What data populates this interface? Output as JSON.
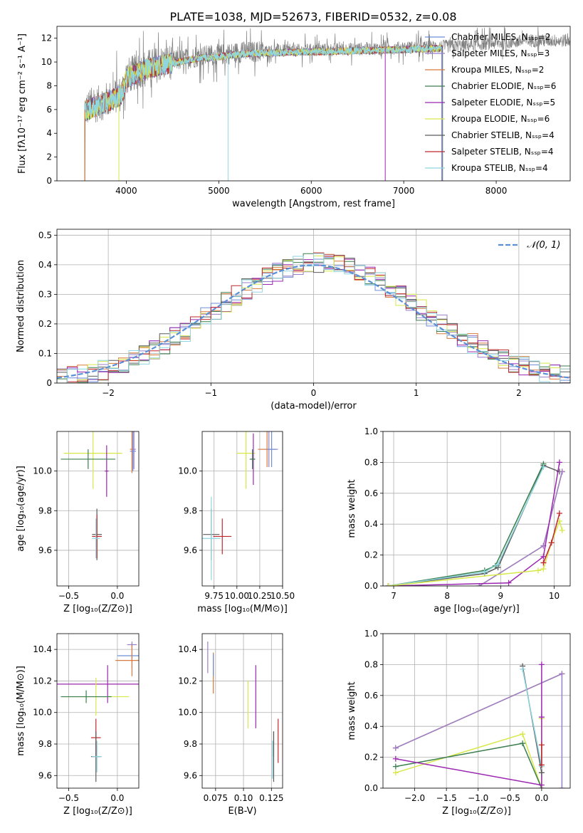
{
  "colors": [
    "#6f8fd8",
    "#9a7fc9",
    "#d97a3c",
    "#3c7f4e",
    "#9b27b0",
    "#d6e84a",
    "#5b5b5b",
    "#c0282d",
    "#8fd6e0"
  ],
  "chart_data": [
    {
      "id": "spectrum",
      "type": "line",
      "title": "PLATE=1038, MJD=52673, FIBERID=0532, z=0.08",
      "xlabel": "wavelength [Angstrom, rest frame]",
      "ylabel": "Flux [fλ10⁻¹⁷ erg cm⁻² s⁻¹ A⁻¹]",
      "xlim": [
        3250,
        8800
      ],
      "ylim": [
        0,
        13
      ],
      "xticks": [
        4000,
        5000,
        6000,
        7000,
        8000
      ],
      "yticks": [
        0,
        2,
        4,
        6,
        8,
        10,
        12
      ],
      "legend_placement": "right",
      "series": [
        {
          "name": "Chabrier MILES, Nₛₛₚ=2",
          "color": "#6f8fd8"
        },
        {
          "name": "Salpeter MILES, Nₛₛₚ=3",
          "color": "#9a7fc9"
        },
        {
          "name": "Kroupa MILES, Nₛₛₚ=2",
          "color": "#d97a3c"
        },
        {
          "name": "Chabrier ELODIE, Nₛₛₚ=6",
          "color": "#3c7f4e"
        },
        {
          "name": "Salpeter ELODIE, Nₛₛₚ=5",
          "color": "#9b27b0"
        },
        {
          "name": "Kroupa ELODIE, Nₛₛₚ=6",
          "color": "#d6e84a"
        },
        {
          "name": "Chabrier STELIB, Nₛₛₚ=4",
          "color": "#5b5b5b"
        },
        {
          "name": "Salpeter STELIB, Nₛₛₚ=4",
          "color": "#c0282d"
        },
        {
          "name": "Kroupa STELIB, Nₛₛₚ=4",
          "color": "#8fd6e0"
        }
      ],
      "data_trend": [
        [
          3550,
          6.0
        ],
        [
          3700,
          6.5
        ],
        [
          3850,
          7.0
        ],
        [
          3950,
          7.4
        ],
        [
          4000,
          8.8
        ],
        [
          4200,
          9.5
        ],
        [
          4400,
          9.9
        ],
        [
          4600,
          10.2
        ],
        [
          4800,
          10.5
        ],
        [
          5000,
          10.6
        ],
        [
          5200,
          10.8
        ],
        [
          5500,
          10.9
        ],
        [
          6000,
          11.0
        ],
        [
          6500,
          11.1
        ],
        [
          7000,
          11.2
        ],
        [
          7400,
          11.3
        ],
        [
          7700,
          11.4
        ],
        [
          8000,
          11.6
        ],
        [
          8400,
          11.8
        ],
        [
          8800,
          11.8
        ]
      ],
      "model_range": [
        3550,
        7420
      ]
    },
    {
      "id": "residuals",
      "type": "line",
      "xlabel": "(data-model)/error",
      "ylabel": "Normed distribution",
      "xlim": [
        -2.5,
        2.5
      ],
      "ylim": [
        0,
        0.52
      ],
      "xticks": [
        -2,
        -1,
        0,
        1,
        2
      ],
      "yticks": [
        0.0,
        0.1,
        0.2,
        0.3,
        0.4,
        0.5
      ],
      "legend": [
        {
          "name": "𝒩(0, 1)",
          "color": "#5b8fd6"
        }
      ],
      "gaussian": {
        "mean": 0,
        "sigma": 1
      },
      "hist_bins": [
        -2.5,
        2.5,
        50
      ]
    },
    {
      "id": "age-vs-Z",
      "type": "scatter",
      "xlabel": "Z [log₁₀(Z/Z⊙)]",
      "ylabel": "age  [log₁₀(age/yr)]",
      "xlim": [
        -0.62,
        0.22
      ],
      "ylim": [
        9.42,
        10.2
      ],
      "xticks": [
        -0.5,
        0.0
      ],
      "yticks": [
        9.6,
        9.8,
        10.0
      ],
      "points": [
        {
          "x": 0.15,
          "y": 10.11,
          "xerr": 0.02,
          "yerr": 0.12,
          "c": 2
        },
        {
          "x": 0.16,
          "y": 10.1,
          "xerr": 0.03,
          "yerr": 0.1,
          "c": 0
        },
        {
          "x": 0.17,
          "y": 10.11,
          "xerr": 0.02,
          "yerr": 0.1,
          "c": 1
        },
        {
          "x": -0.25,
          "y": 10.09,
          "xerr": 0.3,
          "yerr": 0.18,
          "c": 5
        },
        {
          "x": -0.11,
          "y": 10.0,
          "xerr": 0.02,
          "yerr": 0.13,
          "c": 4
        },
        {
          "x": -0.3,
          "y": 10.06,
          "xerr": 0.28,
          "yerr": 0.05,
          "c": 3
        },
        {
          "x": -0.21,
          "y": 9.68,
          "xerr": 0.05,
          "yerr": 0.13,
          "c": 6
        },
        {
          "x": -0.21,
          "y": 9.67,
          "xerr": 0.05,
          "yerr": 0.11,
          "c": 7
        },
        {
          "x": -0.22,
          "y": 9.66,
          "xerr": 0.04,
          "yerr": 0.1,
          "c": 8
        }
      ]
    },
    {
      "id": "age-vs-mass",
      "type": "scatter",
      "xlabel": "mass [log₁₀(M/M⊙)]",
      "ylabel": "",
      "xlim": [
        9.62,
        10.5
      ],
      "ylim": [
        9.42,
        10.2
      ],
      "xticks": [
        9.75,
        10.0,
        10.25,
        10.5
      ],
      "yticks": [
        9.6,
        9.8,
        10.0
      ],
      "points": [
        {
          "x": 10.35,
          "y": 10.11,
          "xerr": 0.1,
          "yerr": 0.09,
          "c": 1
        },
        {
          "x": 10.33,
          "y": 10.11,
          "xerr": 0.1,
          "yerr": 0.09,
          "c": 2
        },
        {
          "x": 10.38,
          "y": 10.11,
          "xerr": 0.05,
          "yerr": 0.09,
          "c": 0
        },
        {
          "x": 10.1,
          "y": 10.09,
          "xerr": 0.1,
          "yerr": 0.18,
          "c": 5
        },
        {
          "x": 10.18,
          "y": 10.06,
          "xerr": 0.02,
          "yerr": 0.13,
          "c": 4
        },
        {
          "x": 10.17,
          "y": 10.06,
          "xerr": 0.03,
          "yerr": 0.05,
          "c": 3
        },
        {
          "x": 9.72,
          "y": 9.68,
          "xerr": 0.09,
          "yerr": 0.13,
          "c": 6
        },
        {
          "x": 9.84,
          "y": 9.67,
          "xerr": 0.1,
          "yerr": 0.09,
          "c": 7
        },
        {
          "x": 9.72,
          "y": 9.66,
          "xerr": 0.1,
          "yerr": 0.21,
          "c": 8
        }
      ]
    },
    {
      "id": "weight-vs-age",
      "type": "line",
      "xlabel": "age  [log₁₀(age/yr)]",
      "ylabel": "mass weight",
      "xlim": [
        6.8,
        10.3
      ],
      "ylim": [
        0,
        1.0
      ],
      "xticks": [
        7,
        8,
        9,
        10
      ],
      "yticks": [
        0.0,
        0.2,
        0.4,
        0.6,
        0.8,
        1.0
      ],
      "series": [
        {
          "c": 6,
          "x": [
            6.9,
            8.7,
            8.95,
            9.8,
            10.1
          ],
          "y": [
            0.0,
            0.08,
            0.12,
            0.78,
            0.74
          ]
        },
        {
          "c": 3,
          "x": [
            6.9,
            8.7,
            8.9,
            9.8
          ],
          "y": [
            0.0,
            0.1,
            0.13,
            0.79
          ]
        },
        {
          "c": 8,
          "x": [
            6.9,
            8.7,
            8.95,
            9.8
          ],
          "y": [
            0.0,
            0.09,
            0.14,
            0.77
          ]
        },
        {
          "c": 2,
          "x": [
            8.6,
            9.8,
            10.15
          ],
          "y": [
            0.0,
            0.26,
            0.74
          ]
        },
        {
          "c": 1,
          "x": [
            8.6,
            9.8,
            10.15
          ],
          "y": [
            0.0,
            0.26,
            0.74
          ]
        },
        {
          "c": 4,
          "x": [
            6.9,
            9.15,
            9.8,
            10.1
          ],
          "y": [
            0.0,
            0.02,
            0.19,
            0.8
          ]
        },
        {
          "c": 5,
          "x": [
            6.9,
            9.7,
            9.8,
            9.95,
            10.1,
            10.15
          ],
          "y": [
            0.0,
            0.1,
            0.11,
            0.28,
            0.42,
            0.36
          ]
        },
        {
          "c": 7,
          "x": [
            9.8,
            9.95,
            10.1
          ],
          "y": [
            0.15,
            0.28,
            0.47
          ]
        }
      ]
    },
    {
      "id": "mass-vs-Z",
      "type": "scatter",
      "xlabel": "Z [log₁₀(Z/Z⊙)]",
      "ylabel": "mass [log₁₀(M/M⊙)]",
      "xlim": [
        -0.62,
        0.22
      ],
      "ylim": [
        9.52,
        10.5
      ],
      "xticks": [
        -0.5,
        0.0
      ],
      "yticks": [
        9.6,
        9.8,
        10.0,
        10.2,
        10.4
      ],
      "points": [
        {
          "x": 0.15,
          "y": 10.43,
          "xerr": 0.05,
          "yerr": 0.02,
          "c": 1
        },
        {
          "x": 0.15,
          "y": 10.36,
          "xerr": 0.15,
          "yerr": 0.08,
          "c": 0
        },
        {
          "x": 0.15,
          "y": 10.33,
          "xerr": 0.17,
          "yerr": 0.1,
          "c": 2
        },
        {
          "x": -0.1,
          "y": 10.18,
          "xerr": 0.52,
          "yerr": 0.12,
          "c": 4
        },
        {
          "x": -0.22,
          "y": 10.1,
          "xerr": 0.34,
          "yerr": 0.12,
          "c": 5
        },
        {
          "x": -0.32,
          "y": 10.1,
          "xerr": 0.26,
          "yerr": 0.04,
          "c": 3
        },
        {
          "x": -0.22,
          "y": 9.84,
          "xerr": 0.05,
          "yerr": 0.12,
          "c": 7
        },
        {
          "x": -0.22,
          "y": 9.72,
          "xerr": 0.05,
          "yerr": 0.16,
          "c": 6
        },
        {
          "x": -0.21,
          "y": 9.72,
          "xerr": 0.05,
          "yerr": 0.1,
          "c": 8
        }
      ]
    },
    {
      "id": "mass-vs-ebv",
      "type": "scatter",
      "xlabel": "E(B-V)",
      "ylabel": "",
      "xlim": [
        0.063,
        0.135
      ],
      "ylim": [
        9.52,
        10.5
      ],
      "xticks": [
        0.075,
        0.1,
        0.125
      ],
      "yticks": [
        9.6,
        9.8,
        10.0,
        10.2,
        10.4
      ],
      "points": [
        {
          "x": 0.068,
          "y": 10.35,
          "yerr": 0.1,
          "c": 1
        },
        {
          "x": 0.073,
          "y": 10.25,
          "yerr": 0.13,
          "c": 2
        },
        {
          "x": 0.073,
          "y": 10.3,
          "yerr": 0.07,
          "c": 0
        },
        {
          "x": 0.111,
          "y": 10.1,
          "yerr": 0.2,
          "c": 4
        },
        {
          "x": 0.104,
          "y": 10.05,
          "yerr": 0.15,
          "c": 5
        },
        {
          "x": 0.127,
          "y": 9.8,
          "yerr": 0.08,
          "c": 3
        },
        {
          "x": 0.127,
          "y": 9.72,
          "yerr": 0.16,
          "c": 6
        },
        {
          "x": 0.131,
          "y": 9.82,
          "yerr": 0.14,
          "c": 7
        },
        {
          "x": 0.126,
          "y": 9.7,
          "yerr": 0.12,
          "c": 8
        }
      ]
    },
    {
      "id": "weight-vs-Z",
      "type": "line",
      "xlabel": "Z [log₁₀(Z/Z⊙)]",
      "ylabel": "mass weight",
      "xlim": [
        -2.5,
        0.45
      ],
      "ylim": [
        0,
        1.0
      ],
      "xticks": [
        -2.0,
        -1.5,
        -1.0,
        -0.5,
        0.0
      ],
      "yticks": [
        0.0,
        0.2,
        0.4,
        0.6,
        0.8,
        1.0
      ],
      "series": [
        {
          "c": 2,
          "x": [
            -2.3,
            0.32
          ],
          "y": [
            0.26,
            0.74
          ]
        },
        {
          "c": 1,
          "x": [
            -2.3,
            0.32,
            0.32
          ],
          "y": [
            0.26,
            0.74,
            0.0
          ]
        },
        {
          "c": 5,
          "x": [
            -2.3,
            -0.3,
            0.0,
            0.0
          ],
          "y": [
            0.1,
            0.35,
            0.0,
            0.45
          ]
        },
        {
          "c": 3,
          "x": [
            -2.3,
            -0.3,
            0.0
          ],
          "y": [
            0.14,
            0.29,
            0.0
          ]
        },
        {
          "c": 4,
          "x": [
            -2.3,
            0.0,
            0.0,
            0.0
          ],
          "y": [
            0.19,
            0.02,
            0.8,
            0.46
          ]
        },
        {
          "c": 6,
          "x": [
            -0.3,
            0.0
          ],
          "y": [
            0.79,
            0.1
          ]
        },
        {
          "c": 8,
          "x": [
            -0.3,
            0.0
          ],
          "y": [
            0.77,
            0.14
          ]
        },
        {
          "c": 7,
          "x": [
            0.0,
            0.0
          ],
          "y": [
            0.15,
            0.28
          ]
        }
      ]
    }
  ]
}
